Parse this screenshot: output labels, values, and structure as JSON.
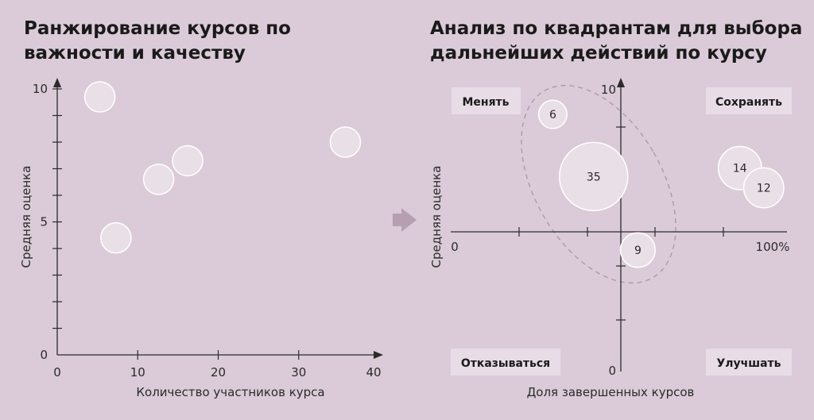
{
  "left": {
    "title": "Ранжирование курсов по важности и качеству"
  },
  "right": {
    "title": "Анализ по квадрантам для выбора дальнейших действий по курсу"
  },
  "colors": {
    "background": "#dbcbd8",
    "bubble_fill": "#e9dfe7",
    "bubble_stroke": "#ffffff",
    "axis": "#2b2b2b",
    "arrow": "#b59fb1",
    "quadrant_box": "#e8dde6",
    "dashed_ellipse": "#ad99aa"
  },
  "transition_icon": "right-arrow-icon",
  "chart_data": [
    {
      "type": "scatter",
      "title": "Ранжирование курсов по важности и качеству",
      "xlabel": "Количество участников курса",
      "ylabel": "Средняя оценка",
      "xlim": [
        0,
        40
      ],
      "ylim": [
        0,
        10
      ],
      "x_ticks": [
        "0",
        "10",
        "20",
        "30",
        "40"
      ],
      "y_ticks": [
        "0",
        "5",
        "10"
      ],
      "grid": false,
      "points": [
        {
          "x": 5.3,
          "y": 9.7
        },
        {
          "x": 12.6,
          "y": 6.6
        },
        {
          "x": 16.2,
          "y": 7.3
        },
        {
          "x": 7.3,
          "y": 4.4
        },
        {
          "x": 35.8,
          "y": 8.0
        }
      ]
    },
    {
      "type": "scatter",
      "title": "Анализ по квадрантам для выбора дальнейших действий по курсу",
      "xlabel": "Доля завершенных курсов",
      "ylabel": "Средняя оценка",
      "xlim": [
        0,
        100
      ],
      "ylim": [
        0,
        10
      ],
      "x_ticks": [
        "0",
        "100%"
      ],
      "y_ticks": [
        "0",
        "10"
      ],
      "grid": false,
      "quadrants": [
        "Менять",
        "Сохранять",
        "Отказываться",
        "Улучшать"
      ],
      "points": [
        {
          "label": "6",
          "x": 30,
          "y": 9.1
        },
        {
          "label": "35",
          "x": 42,
          "y": 6.9
        },
        {
          "label": "14",
          "x": 85,
          "y": 7.2
        },
        {
          "label": "12",
          "x": 92,
          "y": 6.5
        },
        {
          "label": "9",
          "x": 55,
          "y": 4.3
        }
      ]
    }
  ]
}
